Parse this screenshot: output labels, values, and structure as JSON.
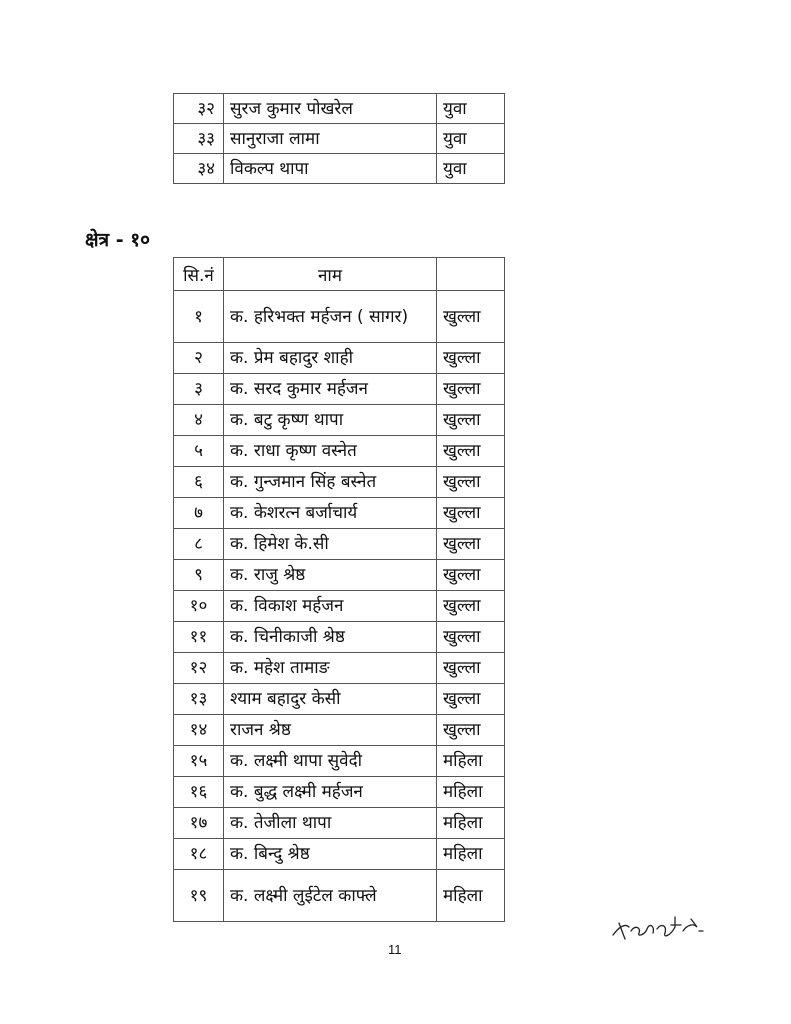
{
  "top_table": {
    "rows": [
      {
        "sn": "३२",
        "name": "सुरज कुमार पोखरेल",
        "category": "युवा"
      },
      {
        "sn": "३३",
        "name": "सानुराजा लामा",
        "category": "युवा"
      },
      {
        "sn": "३४",
        "name": "विकल्प थापा",
        "category": "युवा"
      }
    ]
  },
  "section_heading": "क्षेत्र - १०",
  "main_table": {
    "headers": {
      "sn": "सि.नं",
      "name": "नाम",
      "category": ""
    },
    "rows": [
      {
        "sn": "१",
        "name": "क. हरिभक्त मर्हजन ( सागर)",
        "category": "खुल्ला"
      },
      {
        "sn": "२",
        "name": "क. प्रेम बहादुर शाही",
        "category": "खुल्ला"
      },
      {
        "sn": "३",
        "name": "क. सरद कुमार मर्हजन",
        "category": "खुल्ला"
      },
      {
        "sn": "४",
        "name": "क. बटु कृष्ण थापा",
        "category": "खुल्ला"
      },
      {
        "sn": "५",
        "name": "क. राधा कृष्ण वस्नेत",
        "category": "खुल्ला"
      },
      {
        "sn": "६",
        "name": "क. गुन्जमान सिंह बस्नेत",
        "category": "खुल्ला"
      },
      {
        "sn": "७",
        "name": "क. केशरत्न बर्जाचार्य",
        "category": "खुल्ला"
      },
      {
        "sn": "८",
        "name": "क. हिमेश के.सी",
        "category": "खुल्ला"
      },
      {
        "sn": "९",
        "name": "क. राजु श्रेष्ठ",
        "category": "खुल्ला"
      },
      {
        "sn": "१०",
        "name": "क. विकाश मर्हजन",
        "category": "खुल्ला"
      },
      {
        "sn": "११",
        "name": "क. चिनीकाजी श्रेष्ठ",
        "category": "खुल्ला"
      },
      {
        "sn": "१२",
        "name": "क. महेश तामाङ",
        "category": "खुल्ला"
      },
      {
        "sn": "१३",
        "name": "श्याम बहादुर केसी",
        "category": "खुल्ला"
      },
      {
        "sn": "१४",
        "name": "राजन श्रेष्ठ",
        "category": "खुल्ला"
      },
      {
        "sn": "१५",
        "name": "क. लक्ष्मी थापा सुवेदी",
        "category": "महिला"
      },
      {
        "sn": "१६",
        "name": "क. बुद्ध लक्ष्मी मर्हजन",
        "category": "महिला"
      },
      {
        "sn": "१७",
        "name": "क. तेजीला थापा",
        "category": "महिला"
      },
      {
        "sn": "१८",
        "name": "क. बिन्दु श्रेष्ठ",
        "category": "महिला"
      },
      {
        "sn": "१९",
        "name": "क. लक्ष्मी लुईटेल काफ्ले",
        "category": "महिला"
      }
    ]
  },
  "page_number": "11",
  "signature": "handwritten-signature"
}
